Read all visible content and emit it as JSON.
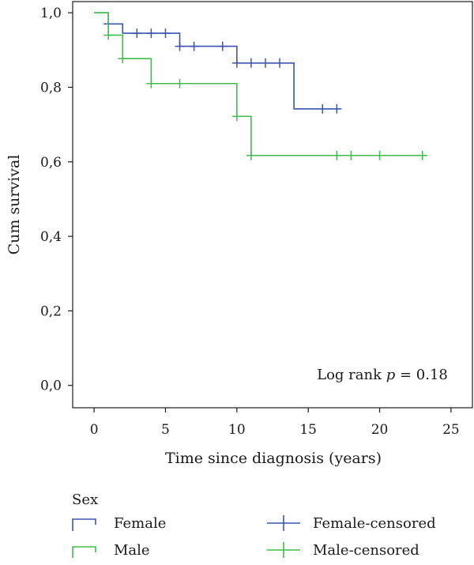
{
  "chart_data": {
    "type": "line",
    "subtype": "kaplan-meier step",
    "xlabel": "Time since diagnosis (years)",
    "ylabel": "Cum survival",
    "xlim": [
      -1.5,
      26.5
    ],
    "ylim": [
      -0.06,
      1.03
    ],
    "x_ticks": [
      0,
      5,
      10,
      15,
      20,
      25
    ],
    "x_tick_labels": [
      "0",
      "5",
      "10",
      "15",
      "20",
      "25"
    ],
    "y_ticks": [
      0.0,
      0.2,
      0.4,
      0.6,
      0.8,
      1.0
    ],
    "y_tick_labels": [
      "0,0",
      "0,2",
      "0,4",
      "0,6",
      "0,8",
      "1,0"
    ],
    "grid": false,
    "annotation": {
      "prefix": "Log rank ",
      "italic": "p",
      "suffix": " = 0.18"
    },
    "legend": {
      "title": "Sex",
      "placement": "bottom",
      "entries": [
        {
          "label": "Female",
          "kind": "step",
          "color": "#3a55b0"
        },
        {
          "label": "Female-censored",
          "kind": "censor",
          "color": "#3a55b0"
        },
        {
          "label": "Male",
          "kind": "step",
          "color": "#3fbf4a"
        },
        {
          "label": "Male-censored",
          "kind": "censor",
          "color": "#3fbf4a"
        }
      ]
    },
    "series": [
      {
        "name": "Female",
        "color": "#3a55b0",
        "steps": [
          [
            0,
            1.0
          ],
          [
            1,
            0.97
          ],
          [
            2,
            0.945
          ],
          [
            6,
            0.91
          ],
          [
            10,
            0.865
          ],
          [
            14,
            0.742
          ],
          [
            17.2,
            0.742
          ]
        ],
        "censored": [
          [
            1,
            0.97
          ],
          [
            3,
            0.945
          ],
          [
            4,
            0.945
          ],
          [
            5,
            0.945
          ],
          [
            6,
            0.91
          ],
          [
            7,
            0.91
          ],
          [
            9,
            0.91
          ],
          [
            10,
            0.865
          ],
          [
            11,
            0.865
          ],
          [
            12,
            0.865
          ],
          [
            13,
            0.865
          ],
          [
            16,
            0.742
          ],
          [
            17,
            0.742
          ]
        ]
      },
      {
        "name": "Male",
        "color": "#3fbf4a",
        "steps": [
          [
            0,
            1.0
          ],
          [
            1,
            0.94
          ],
          [
            2,
            0.877
          ],
          [
            4,
            0.81
          ],
          [
            10,
            0.722
          ],
          [
            11,
            0.617
          ],
          [
            23,
            0.617
          ]
        ],
        "censored": [
          [
            1,
            0.94
          ],
          [
            2,
            0.877
          ],
          [
            4,
            0.81
          ],
          [
            6,
            0.81
          ],
          [
            10,
            0.722
          ],
          [
            11,
            0.617
          ],
          [
            17,
            0.617
          ],
          [
            18,
            0.617
          ],
          [
            20,
            0.617
          ],
          [
            23,
            0.617
          ]
        ]
      }
    ]
  }
}
